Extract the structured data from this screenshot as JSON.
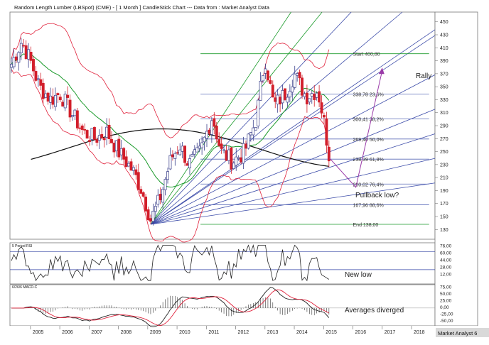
{
  "title": "Random Length Lumber (LBSpot) (CME) - [ 1 Month ] CandleStick Chart --- Data from : Market Analyst Data",
  "footer_brand": "Market Analyst 6",
  "annotations": {
    "rally": "Rally",
    "pullback": "Pullback low?",
    "new_low": "New low",
    "averages": "Averages diverged"
  },
  "colors": {
    "up": "#3a3f8a",
    "down": "#d21f2b",
    "band": "#e0203a",
    "ma_short": "#1a9a2a",
    "ma_long": "#111111",
    "fan": "#3a4aa8",
    "path": "#9a3aa8",
    "fib": "#5a6ab8"
  },
  "chart_data": [
    {
      "type": "candlestick",
      "title": "Random Length Lumber (LBSpot) (CME) - [ 1 Month ] CandleStick Chart --- Data from : Market Analyst Data",
      "x_ticks": [
        "2005",
        "2006",
        "2007",
        "2008",
        "2009",
        "2010",
        "2011",
        "2012",
        "2013",
        "2014",
        "2015",
        "2016",
        "2017",
        "2018"
      ],
      "ylim": [
        115,
        465
      ],
      "y_ticks": [
        450,
        430,
        410,
        390,
        370,
        350,
        330,
        310,
        290,
        270,
        250,
        230,
        210,
        190,
        170,
        150,
        130
      ],
      "fib_levels": [
        {
          "label": "Start 400,80",
          "value": 400.8
        },
        {
          "label": "338,78 23,6%",
          "value": 338.78
        },
        {
          "label": "300,41 38,2%",
          "value": 300.41
        },
        {
          "label": "269,40 50,0%",
          "value": 269.4
        },
        {
          "label": "238,39 61,8%",
          "value": 238.39
        },
        {
          "label": "200,02 76,4%",
          "value": 200.02
        },
        {
          "label": "167,96 88,6%",
          "value": 167.96
        },
        {
          "label": "End 138,00",
          "value": 138.0
        }
      ],
      "price_path": [
        {
          "x": 2004.3,
          "y": 380
        },
        {
          "x": 2004.7,
          "y": 420
        },
        {
          "x": 2005.0,
          "y": 390
        },
        {
          "x": 2005.3,
          "y": 350
        },
        {
          "x": 2005.7,
          "y": 330
        },
        {
          "x": 2006.0,
          "y": 340
        },
        {
          "x": 2006.4,
          "y": 310
        },
        {
          "x": 2006.8,
          "y": 280
        },
        {
          "x": 2007.2,
          "y": 270
        },
        {
          "x": 2007.6,
          "y": 280
        },
        {
          "x": 2008.0,
          "y": 250
        },
        {
          "x": 2008.5,
          "y": 220
        },
        {
          "x": 2008.8,
          "y": 190
        },
        {
          "x": 2009.1,
          "y": 145
        },
        {
          "x": 2009.4,
          "y": 175
        },
        {
          "x": 2009.8,
          "y": 240
        },
        {
          "x": 2010.1,
          "y": 260
        },
        {
          "x": 2010.4,
          "y": 230
        },
        {
          "x": 2010.8,
          "y": 250
        },
        {
          "x": 2011.2,
          "y": 305
        },
        {
          "x": 2011.5,
          "y": 250
        },
        {
          "x": 2011.9,
          "y": 235
        },
        {
          "x": 2012.3,
          "y": 250
        },
        {
          "x": 2012.7,
          "y": 300
        },
        {
          "x": 2013.0,
          "y": 395
        },
        {
          "x": 2013.3,
          "y": 320
        },
        {
          "x": 2013.7,
          "y": 340
        },
        {
          "x": 2014.0,
          "y": 370
        },
        {
          "x": 2014.4,
          "y": 335
        },
        {
          "x": 2014.8,
          "y": 345
        },
        {
          "x": 2015.0,
          "y": 300
        },
        {
          "x": 2015.2,
          "y": 240
        }
      ],
      "projection": [
        {
          "x": 2015.2,
          "y": 240
        },
        {
          "x": 2016.1,
          "y": 195
        },
        {
          "x": 2017.0,
          "y": 375
        }
      ]
    },
    {
      "type": "line",
      "title": "5 Period RSI",
      "y_ticks": [
        "76,00",
        "60,00",
        "44,00",
        "28,00",
        "12,00"
      ],
      "ylim": [
        0,
        88
      ],
      "levels": [
        70,
        30
      ]
    },
    {
      "type": "line",
      "title": "6/26/6 MACD-C",
      "y_ticks": [
        "75,00",
        "50,00",
        "25,00",
        "0,00",
        "-25,00",
        "-50,00"
      ],
      "ylim": [
        -60,
        80
      ]
    }
  ]
}
